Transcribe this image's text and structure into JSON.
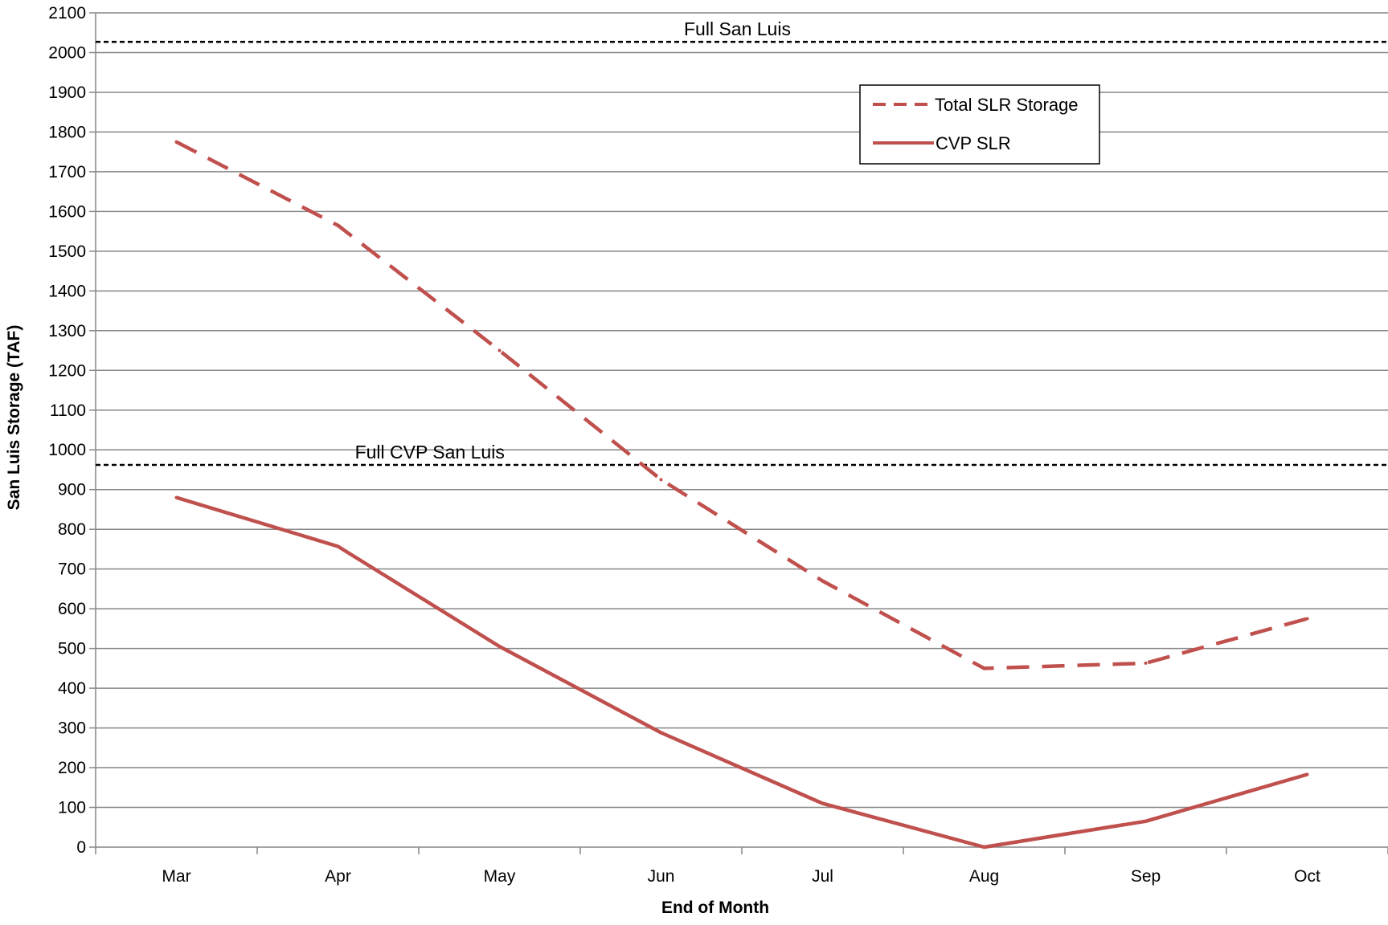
{
  "chart_data": {
    "type": "line",
    "title": "",
    "xlabel": "End of Month",
    "ylabel": "San Luis Storage (TAF)",
    "categories": [
      "Mar",
      "Apr",
      "May",
      "Jun",
      "Jul",
      "Aug",
      "Sep",
      "Oct"
    ],
    "ylim": [
      0,
      2100
    ],
    "yticks": [
      0,
      100,
      200,
      300,
      400,
      500,
      600,
      700,
      800,
      900,
      1000,
      1100,
      1200,
      1300,
      1400,
      1500,
      1600,
      1700,
      1800,
      1900,
      2000,
      2100
    ],
    "grid": true,
    "legend_position": "top-right",
    "series": [
      {
        "name": "Total SLR Storage",
        "style": "dashed",
        "color": "#c0504d",
        "values": [
          1775,
          1565,
          1250,
          925,
          670,
          450,
          463,
          575
        ]
      },
      {
        "name": "CVP SLR",
        "style": "solid",
        "color": "#c0504d",
        "values": [
          880,
          757,
          505,
          288,
          110,
          0,
          65,
          183
        ]
      }
    ],
    "reference_lines": [
      {
        "label": "Full  San Luis",
        "value": 2027,
        "style": "dashed",
        "color": "#000000"
      },
      {
        "label": "Full CVP San Luis",
        "value": 962,
        "style": "dashed",
        "color": "#000000"
      }
    ]
  }
}
